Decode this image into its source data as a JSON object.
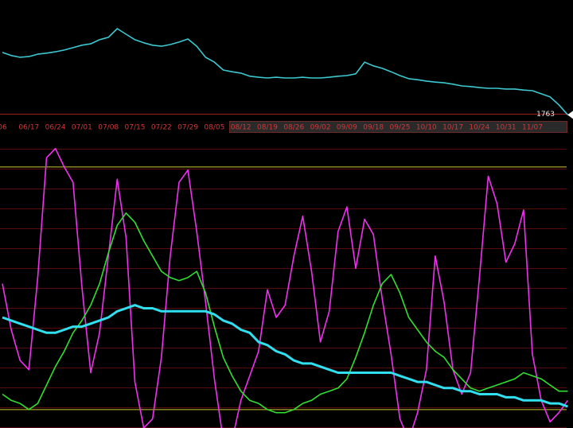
{
  "chart_data": [
    {
      "type": "line",
      "categories": [
        "06",
        null,
        null,
        "06/17",
        null,
        null,
        "06/24",
        null,
        null,
        "07/01",
        null,
        null,
        "07/08",
        null,
        null,
        "07/15",
        null,
        null,
        "07/22",
        null,
        null,
        "07/29",
        null,
        null,
        "08/05",
        null,
        null,
        "08/12",
        null,
        null,
        "08/19",
        null,
        null,
        "08/26",
        null,
        null,
        "09/02",
        null,
        null,
        "09/09",
        null,
        null,
        "09/18",
        null,
        null,
        "09/25",
        null,
        null,
        "10/10",
        null,
        null,
        "10/17",
        null,
        null,
        "10/24",
        null,
        null,
        "10/31",
        null,
        null,
        "11/07",
        null,
        null,
        null,
        null
      ],
      "ylim": [
        1750,
        2050
      ],
      "series": [
        {
          "color": "#3cc8d0",
          "values": [
            1944,
            1935,
            1930,
            1932,
            1939,
            1942,
            1946,
            1951,
            1958,
            1965,
            1969,
            1981,
            1988,
            2013,
            1997,
            1981,
            1972,
            1965,
            1962,
            1967,
            1974,
            1983,
            1962,
            1930,
            1916,
            1893,
            1888,
            1884,
            1875,
            1872,
            1870,
            1872,
            1870,
            1870,
            1872,
            1870,
            1870,
            1872,
            1875,
            1877,
            1882,
            1916,
            1905,
            1898,
            1888,
            1877,
            1868,
            1865,
            1861,
            1858,
            1856,
            1852,
            1847,
            1845,
            1842,
            1840,
            1840,
            1838,
            1838,
            1835,
            1833,
            1824,
            1815,
            1792,
            1763
          ]
        }
      ]
    },
    {
      "type": "line",
      "ylim": [
        0,
        100
      ],
      "levels": [
        {
          "value": 85,
          "color": "#c8c832"
        },
        {
          "value": 6,
          "color": "#c8c832"
        }
      ],
      "series": [
        {
          "color": "#f030f0",
          "values": [
            47,
            32,
            22,
            19,
            49,
            88,
            91,
            85,
            80,
            46,
            18,
            31,
            56,
            81,
            62,
            15,
            0,
            3,
            23,
            56,
            80,
            84,
            64,
            41,
            16,
            -4,
            -4,
            9,
            17,
            25,
            45,
            36,
            40,
            56,
            69,
            51,
            28,
            38,
            64,
            72,
            52,
            68,
            63,
            42,
            24,
            3,
            -4,
            5,
            19,
            56,
            41,
            19,
            11,
            18,
            49,
            82,
            73,
            54,
            60,
            71,
            24,
            9,
            2,
            5,
            9
          ]
        },
        {
          "color": "#30e030",
          "values": [
            11,
            9,
            8,
            6,
            8,
            14,
            20,
            25,
            31,
            35,
            40,
            47,
            57,
            66,
            70,
            67,
            61,
            56,
            51,
            49,
            48,
            49,
            51,
            44,
            33,
            23,
            17,
            12,
            9,
            8,
            6,
            5,
            5,
            6,
            8,
            9,
            11,
            12,
            13,
            16,
            23,
            31,
            40,
            47,
            50,
            44,
            36,
            32,
            28,
            25,
            23,
            19,
            16,
            13,
            12,
            13,
            14,
            15,
            16,
            18,
            17,
            16,
            14,
            12,
            12
          ]
        },
        {
          "color": "#30e0f0",
          "width": 3,
          "values": [
            36,
            35,
            34,
            33,
            32,
            31,
            31,
            32,
            33,
            33,
            34,
            35,
            36,
            38,
            39,
            40,
            39,
            39,
            38,
            38,
            38,
            38,
            38,
            38,
            37,
            35,
            34,
            32,
            31,
            28,
            27,
            25,
            24,
            22,
            21,
            21,
            20,
            19,
            18,
            18,
            18,
            18,
            18,
            18,
            18,
            17,
            16,
            15,
            15,
            14,
            13,
            13,
            12,
            12,
            11,
            11,
            11,
            10,
            10,
            9,
            9,
            9,
            8,
            8,
            7
          ]
        }
      ]
    }
  ]
}
